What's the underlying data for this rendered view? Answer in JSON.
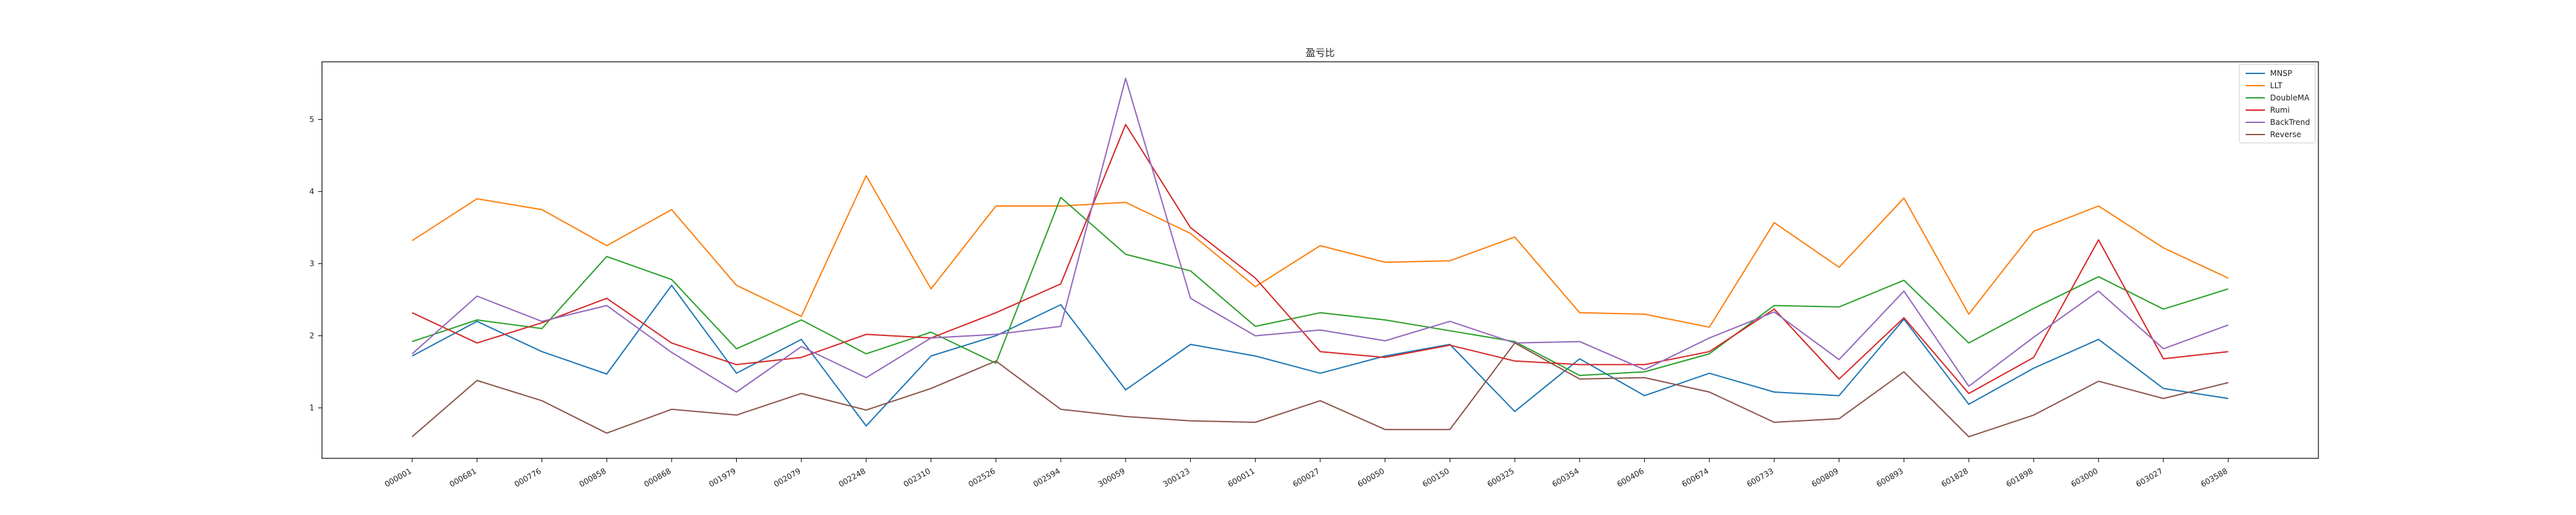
{
  "chart_data": {
    "type": "line",
    "title": "盈亏比",
    "xlabel": "",
    "ylabel": "",
    "ylim": [
      0.3,
      5.8
    ],
    "yticks": [
      1,
      2,
      3,
      4,
      5
    ],
    "grid": false,
    "legend_position": "top-right",
    "categories": [
      "000001",
      "000681",
      "000776",
      "000858",
      "000868",
      "001979",
      "002079",
      "002248",
      "002310",
      "002526",
      "002594",
      "300059",
      "300123",
      "600011",
      "600027",
      "600050",
      "600150",
      "600325",
      "600354",
      "600406",
      "600674",
      "600733",
      "600809",
      "600893",
      "601828",
      "601898",
      "603000",
      "603027",
      "603588"
    ],
    "series": [
      {
        "name": "MNSP",
        "color": "#1f77b4",
        "values": [
          1.72,
          2.2,
          1.78,
          1.47,
          2.7,
          1.48,
          1.95,
          0.75,
          1.72,
          2.0,
          2.43,
          1.25,
          1.88,
          1.72,
          1.48,
          1.72,
          1.88,
          0.95,
          1.68,
          1.17,
          1.48,
          1.22,
          1.17,
          2.23,
          1.05,
          1.55,
          1.95,
          1.27,
          1.13
        ]
      },
      {
        "name": "LLT",
        "color": "#ff7f0e",
        "values": [
          3.32,
          3.9,
          3.75,
          3.25,
          3.75,
          2.7,
          2.27,
          4.22,
          2.65,
          3.8,
          3.8,
          3.85,
          3.42,
          2.68,
          3.25,
          3.02,
          3.04,
          3.37,
          2.32,
          2.3,
          2.12,
          3.57,
          2.95,
          3.91,
          2.3,
          3.45,
          3.8,
          3.22,
          2.8
        ]
      },
      {
        "name": "DoubleMA",
        "color": "#2ca02c",
        "values": [
          1.92,
          2.22,
          2.1,
          3.1,
          2.78,
          1.82,
          2.22,
          1.75,
          2.05,
          1.62,
          3.92,
          3.13,
          2.9,
          2.13,
          2.32,
          2.22,
          2.07,
          1.92,
          1.45,
          1.5,
          1.75,
          2.42,
          2.4,
          2.77,
          1.9,
          2.38,
          2.82,
          2.37,
          2.65
        ]
      },
      {
        "name": "Rumi",
        "color": "#d62728",
        "values": [
          2.32,
          1.9,
          2.18,
          2.52,
          1.9,
          1.6,
          1.7,
          2.02,
          1.97,
          2.32,
          2.72,
          4.93,
          3.5,
          2.8,
          1.78,
          1.7,
          1.87,
          1.65,
          1.6,
          1.6,
          1.78,
          2.37,
          1.4,
          2.25,
          1.2,
          1.7,
          3.33,
          1.68,
          1.78
        ]
      },
      {
        "name": "BackTrend",
        "color": "#9467bd",
        "values": [
          1.75,
          2.55,
          2.2,
          2.42,
          1.77,
          1.22,
          1.85,
          1.42,
          1.97,
          2.02,
          2.13,
          5.57,
          2.52,
          2.0,
          2.08,
          1.93,
          2.2,
          1.9,
          1.92,
          1.53,
          1.97,
          2.33,
          1.67,
          2.62,
          1.3,
          1.98,
          2.62,
          1.82,
          2.15
        ]
      },
      {
        "name": "Reverse",
        "color": "#8c564b",
        "values": [
          0.6,
          1.38,
          1.1,
          0.65,
          0.98,
          0.9,
          1.2,
          0.97,
          1.27,
          1.65,
          0.98,
          0.88,
          0.82,
          0.8,
          1.1,
          0.7,
          0.7,
          1.9,
          1.4,
          1.42,
          1.22,
          0.8,
          0.85,
          1.5,
          0.6,
          0.9,
          1.37,
          1.13,
          1.35
        ]
      }
    ]
  }
}
